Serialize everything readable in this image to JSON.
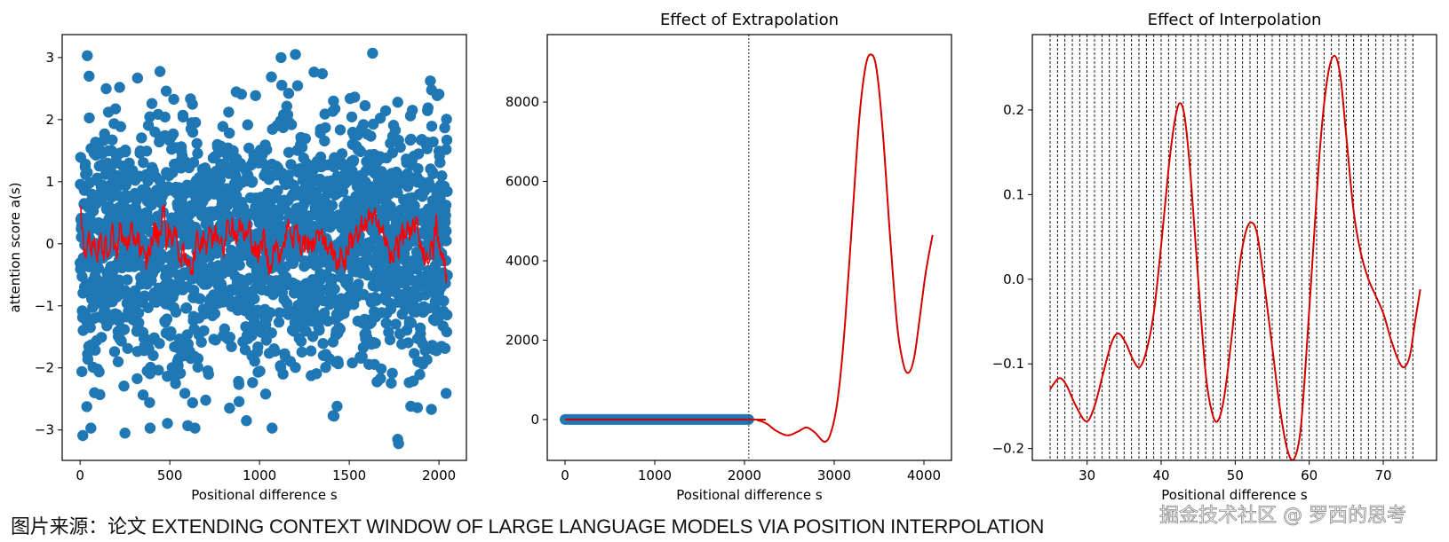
{
  "caption": "图片来源：论文 EXTENDING CONTEXT WINDOW OF LARGE LANGUAGE MODELS VIA POSITION INTERPOLATION",
  "watermark": "掘金技术社区 @ 罗西的思考",
  "colors": {
    "scatter": "#1f77b4",
    "line": "#ff0000",
    "curve": "#d40000",
    "axis": "#000000",
    "grid_dashed": "#000000"
  },
  "chart_data": [
    {
      "id": "panel-attention-scores",
      "type": "scatter",
      "title": "",
      "xlabel": "Positional difference s",
      "ylabel": "attention score a(s)",
      "xlim": [
        -100,
        2153
      ],
      "ylim": [
        -3.49,
        3.37
      ],
      "xticks": [
        0,
        500,
        1000,
        1500,
        2000
      ],
      "xtick_labels": [
        "0",
        "500",
        "1000",
        "1500",
        "2000"
      ],
      "yticks": [
        3,
        2,
        1,
        0,
        -1,
        -2,
        -3
      ],
      "ytick_labels": [
        "3",
        "2",
        "1",
        "0",
        "−1",
        "−2",
        "−3"
      ],
      "grid": false,
      "scatter_series": {
        "name": "attention samples",
        "note": "~2048 points, s = 0..2047, a(s) roughly N(0,1)",
        "outliers": [
          [
            15,
            -3.09
          ],
          [
            40,
            3.03
          ],
          [
            50,
            2.7
          ],
          [
            60,
            -2.97
          ],
          [
            80,
            -2.4
          ],
          [
            110,
            -2.43
          ],
          [
            220,
            2.52
          ],
          [
            250,
            -3.05
          ],
          [
            320,
            2.67
          ],
          [
            390,
            -2.97
          ],
          [
            480,
            2.46
          ],
          [
            600,
            -2.93
          ],
          [
            640,
            -2.97
          ],
          [
            700,
            -2.52
          ],
          [
            1070,
            -2.97
          ],
          [
            1120,
            3.0
          ],
          [
            1200,
            3.05
          ],
          [
            1350,
            2.74
          ],
          [
            1410,
            -2.77
          ],
          [
            1630,
            3.07
          ],
          [
            1770,
            -3.15
          ],
          [
            1775,
            -3.22
          ],
          [
            1880,
            -2.64
          ],
          [
            2000,
            2.41
          ],
          [
            2040,
            -2.41
          ],
          [
            2040,
            1.52
          ]
        ]
      },
      "line_series": {
        "name": "moving average",
        "x": [
          0,
          16,
          32,
          48,
          64,
          80,
          96,
          112,
          128,
          144,
          160,
          176,
          192,
          208,
          224,
          240,
          256,
          272,
          288,
          304,
          320,
          336,
          352,
          368,
          384,
          400,
          416,
          432,
          448,
          464,
          480,
          496,
          512,
          528,
          544,
          560,
          576,
          592,
          608,
          624,
          640,
          656,
          672,
          688,
          704,
          720,
          736,
          752,
          768,
          784,
          800,
          816,
          832,
          848,
          864,
          880,
          896,
          912,
          928,
          944,
          960,
          976,
          992,
          1008,
          1024,
          1040,
          1056,
          1072,
          1088,
          1104,
          1120,
          1136,
          1152,
          1168,
          1184,
          1200,
          1216,
          1232,
          1248,
          1264,
          1280,
          1296,
          1312,
          1328,
          1344,
          1360,
          1376,
          1392,
          1408,
          1424,
          1440,
          1456,
          1472,
          1488,
          1504,
          1520,
          1536,
          1552,
          1568,
          1584,
          1600,
          1616,
          1632,
          1648,
          1664,
          1680,
          1696,
          1712,
          1728,
          1744,
          1760,
          1776,
          1792,
          1808,
          1824,
          1840,
          1856,
          1872,
          1888,
          1904,
          1920,
          1936,
          1952,
          1968,
          1984,
          2000,
          2016,
          2032,
          2047
        ],
        "y": [
          0.55,
          0.05,
          -0.1,
          0.15,
          -0.15,
          0.1,
          -0.2,
          0.2,
          -0.3,
          0.05,
          -0.25,
          0.25,
          0.05,
          -0.15,
          0.3,
          0.0,
          0.1,
          -0.05,
          0.2,
          0.05,
          0.15,
          -0.1,
          -0.2,
          -0.3,
          -0.1,
          0.0,
          0.25,
          0.1,
          0.2,
          0.65,
          0.05,
          0.2,
          0.1,
          0.2,
          -0.05,
          -0.25,
          -0.15,
          -0.35,
          -0.2,
          -0.45,
          -0.1,
          0.1,
          -0.05,
          0.2,
          -0.1,
          0.3,
          0.0,
          0.2,
          0.1,
          0.15,
          -0.05,
          0.3,
          0.2,
          0.35,
          0.1,
          0.2,
          0.3,
          0.15,
          0.1,
          0.25,
          0.0,
          -0.1,
          -0.2,
          -0.05,
          0.15,
          -0.2,
          -0.45,
          -0.15,
          0.0,
          -0.2,
          -0.1,
          0.05,
          0.2,
          0.35,
          0.0,
          0.3,
          0.1,
          -0.1,
          0.05,
          -0.05,
          0.1,
          -0.1,
          0.15,
          0.05,
          0.3,
          0.0,
          -0.1,
          0.05,
          -0.2,
          -0.25,
          -0.3,
          -0.1,
          -0.35,
          -0.15,
          0.1,
          0.05,
          0.2,
          0.05,
          0.3,
          0.2,
          0.4,
          0.45,
          0.3,
          0.5,
          0.35,
          0.2,
          0.1,
          -0.05,
          -0.2,
          -0.35,
          0.15,
          -0.1,
          0.2,
          0.1,
          0.25,
          0.05,
          0.3,
          0.35,
          0.1,
          -0.05,
          -0.2,
          -0.3,
          -0.05,
          -0.15,
          0.4,
          -0.1,
          -0.2,
          -0.3,
          -0.65
        ]
      }
    },
    {
      "id": "panel-extrapolation",
      "type": "line",
      "title": "Effect of Extrapolation",
      "xlabel": "Positional difference s",
      "ylabel": "",
      "xlim": [
        -198,
        4307
      ],
      "ylim": [
        -1030,
        9700
      ],
      "xticks": [
        0,
        1000,
        2000,
        3000,
        4000
      ],
      "xtick_labels": [
        "0",
        "1000",
        "2000",
        "3000",
        "4000"
      ],
      "yticks": [
        0,
        2000,
        4000,
        6000,
        8000
      ],
      "ytick_labels": [
        "0",
        "2000",
        "4000",
        "6000",
        "8000"
      ],
      "grid": false,
      "vline": {
        "x": 2048,
        "style": "dotted"
      },
      "scatter_series": {
        "name": "observed points",
        "x_range": [
          0,
          2048
        ],
        "y": 0
      },
      "line_series": {
        "name": "fitted function",
        "x": [
          0,
          2048,
          2150,
          2250,
          2350,
          2480,
          2600,
          2690,
          2780,
          2900,
          2980,
          3050,
          3120,
          3200,
          3280,
          3350,
          3410,
          3470,
          3540,
          3620,
          3700,
          3770,
          3830,
          3890,
          3950,
          4020,
          4096
        ],
        "y": [
          0,
          0,
          -20,
          -110,
          -280,
          -400,
          -300,
          -200,
          -320,
          -560,
          -200,
          700,
          2400,
          5000,
          7600,
          8900,
          9200,
          8850,
          7300,
          4700,
          2400,
          1400,
          1180,
          1550,
          2500,
          3700,
          4650
        ]
      }
    },
    {
      "id": "panel-interpolation",
      "type": "line",
      "title": "Effect of Interpolation",
      "xlabel": "Positional difference s",
      "ylabel": "",
      "xlim": [
        22.6,
        77.2
      ],
      "ylim": [
        -0.214,
        0.289
      ],
      "xticks": [
        30,
        40,
        50,
        60,
        70
      ],
      "xtick_labels": [
        "30",
        "40",
        "50",
        "60",
        "70"
      ],
      "yticks": [
        0.2,
        0.1,
        0.0,
        -0.1,
        -0.2
      ],
      "ytick_labels": [
        "0.2",
        "0.1",
        "0.0",
        "−0.1",
        "−0.2"
      ],
      "grid": false,
      "vlines": {
        "from": 25,
        "to": 74,
        "step": 1,
        "style": "dotted"
      },
      "line_series": {
        "name": "interpolated function",
        "x": [
          25,
          26.2,
          27.2,
          28.5,
          29.9,
          31,
          32.2,
          33.3,
          34.2,
          35.2,
          36.2,
          37.1,
          38,
          39,
          40,
          41,
          41.8,
          42.5,
          43.2,
          44,
          45,
          46,
          46.8,
          47.6,
          48.5,
          49.5,
          50.5,
          51.4,
          52.2,
          53,
          54,
          55,
          56,
          57,
          57.9,
          58.8,
          59.6,
          60.5,
          61.5,
          62.5,
          63.4,
          64.2,
          65,
          66,
          67,
          68,
          69,
          70,
          71,
          72,
          72.8,
          73.6,
          74.3,
          75
        ],
        "y": [
          -0.13,
          -0.117,
          -0.125,
          -0.15,
          -0.168,
          -0.15,
          -0.11,
          -0.075,
          -0.064,
          -0.075,
          -0.095,
          -0.104,
          -0.085,
          -0.04,
          0.04,
          0.13,
          0.185,
          0.208,
          0.19,
          0.12,
          0.0,
          -0.11,
          -0.155,
          -0.168,
          -0.14,
          -0.07,
          0.01,
          0.055,
          0.067,
          0.052,
          -0.01,
          -0.08,
          -0.15,
          -0.2,
          -0.213,
          -0.18,
          -0.09,
          0.03,
          0.16,
          0.24,
          0.264,
          0.24,
          0.17,
          0.08,
          0.03,
          0.0,
          -0.02,
          -0.04,
          -0.07,
          -0.095,
          -0.104,
          -0.09,
          -0.05,
          -0.012
        ]
      }
    }
  ]
}
